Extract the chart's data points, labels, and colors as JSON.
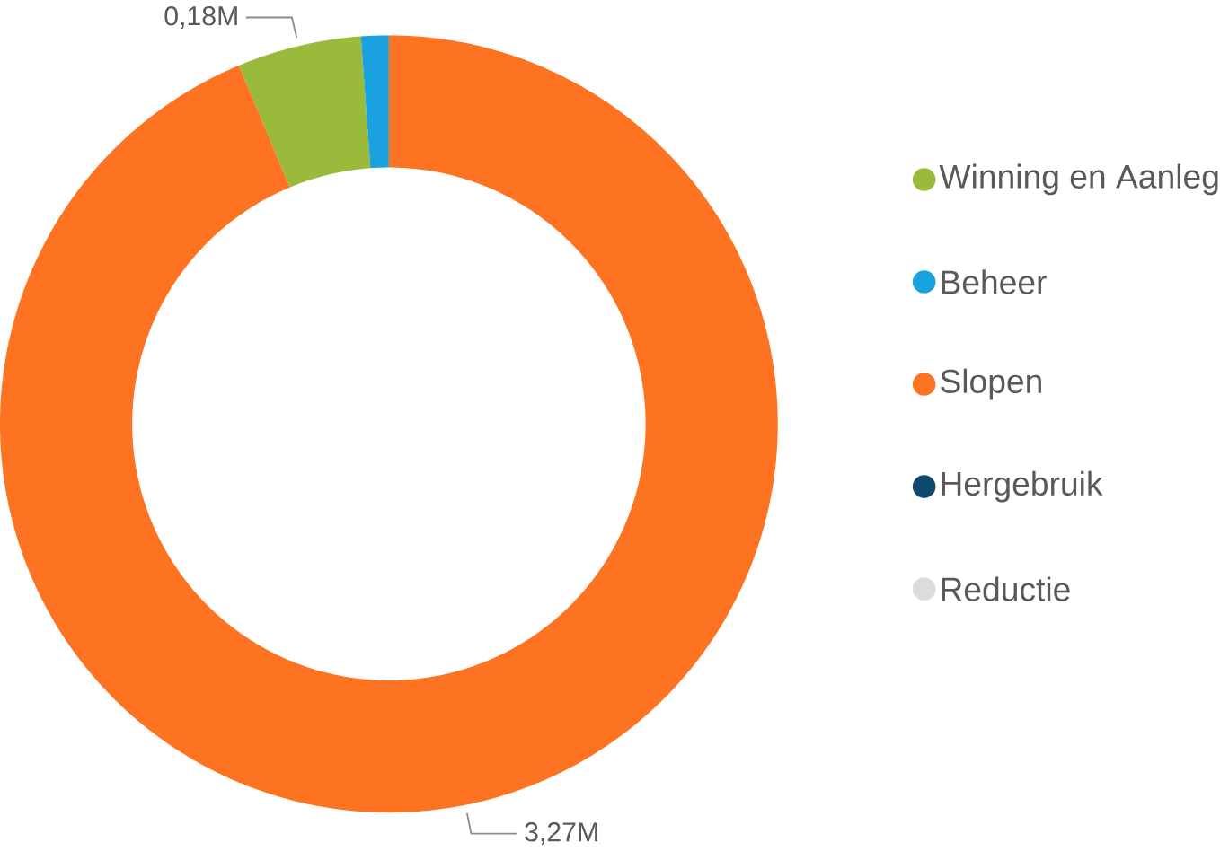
{
  "chart_data": {
    "type": "donut",
    "categories": [
      "Winning en Aanleg",
      "Beheer",
      "Slopen",
      "Hergebruik",
      "Reductie"
    ],
    "values": [
      0.18,
      0.04,
      3.27,
      0,
      0
    ],
    "colors": [
      "#9aba3c",
      "#1aa1e0",
      "#fe7321",
      "#0f4a6e",
      "#dcdcdc"
    ],
    "value_labels": [
      "0,18M",
      null,
      "3,27M",
      null,
      null
    ],
    "legend": "right"
  }
}
